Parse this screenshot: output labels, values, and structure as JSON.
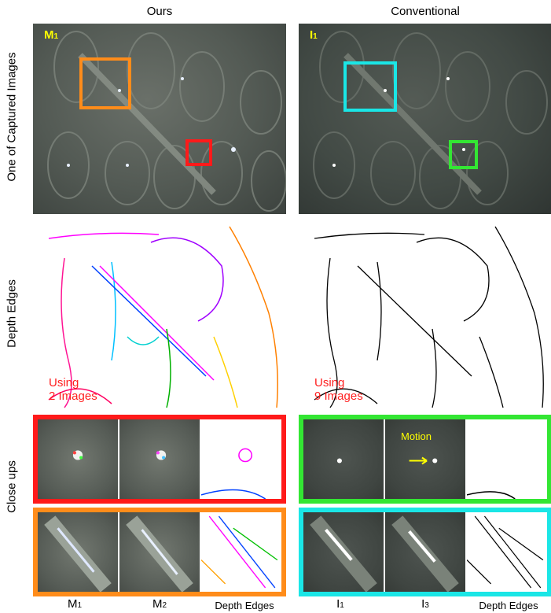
{
  "columns": {
    "left": "Ours",
    "right": "Conventional"
  },
  "rows": {
    "captured": "One of Captured Images",
    "edges": "Depth Edges",
    "closeups": "Close ups"
  },
  "panels": {
    "ours_tag": {
      "base": "M",
      "sub": "1"
    },
    "conv_tag": {
      "base": "I",
      "sub": "1"
    },
    "ours_using": [
      "Using",
      "2 Images"
    ],
    "conv_using": [
      "Using",
      "9 Images"
    ],
    "motion_label": "Motion"
  },
  "bottom_labels": {
    "m1": {
      "base": "M",
      "sub": "1"
    },
    "m2": {
      "base": "M",
      "sub": "2"
    },
    "ours_edges": "Depth Edges",
    "i1": {
      "base": "I",
      "sub": "1"
    },
    "i3": {
      "base": "I",
      "sub": "3"
    },
    "conv_edges": "Depth Edges"
  },
  "colors": {
    "red": "#ff1a1a",
    "orange": "#ff8c1a",
    "green": "#33e633",
    "cyan": "#1ae6e6",
    "yellow": "#ffff00"
  }
}
